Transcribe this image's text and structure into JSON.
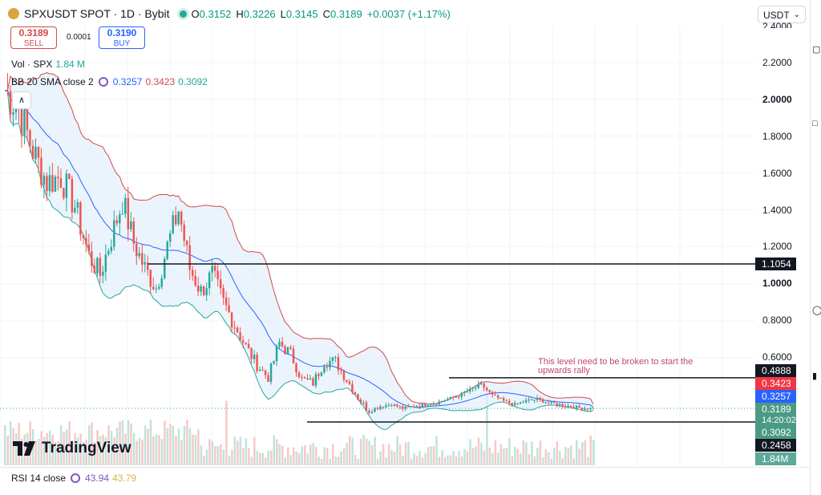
{
  "header": {
    "symbol": "SPXUSDT SPOT · 1D · Bybit",
    "o_label": "O",
    "o": "0.3152",
    "h_label": "H",
    "h": "0.3226",
    "l_label": "L",
    "l": "0.3145",
    "c_label": "C",
    "c": "0.3189",
    "change": "+0.0037 (+1.17%)"
  },
  "trade": {
    "sell_price": "0.3189",
    "sell_label": "SELL",
    "spread": "0.0001",
    "buy_price": "0.3190",
    "buy_label": "BUY"
  },
  "legends": {
    "vol_label": "Vol · SPX",
    "vol_value": "1.84 M",
    "bb_label": "BB 20 SMA close 2",
    "bb_basis": "0.3257",
    "bb_upper": "0.3423",
    "bb_lower": "0.3092",
    "rsi_label": "RSI 14 close",
    "rsi_value": "43.94",
    "rsi_ma": "43.79"
  },
  "currency": "USDT",
  "logo_text": "TradingView",
  "annotation": "This level need to be broken to start the upwards rally",
  "price_ticks": [
    "2.4000",
    "2.2000",
    "2.0000",
    "1.8000",
    "1.6000",
    "1.4000",
    "1.2000",
    "1.0000",
    "0.8000",
    "0.6000"
  ],
  "tags": {
    "level_1": "1.1054",
    "level_2": "0.4888",
    "bb_upper": "0.3423",
    "bb_basis": "0.3257",
    "last_price": "0.3189",
    "countdown": "14:20:02",
    "bb_lower": "0.3092",
    "level_3": "0.2458",
    "volume": "1.84M"
  },
  "colors": {
    "up": "#26a69a",
    "down": "#ef5350",
    "bb_upper": "#d14a4a",
    "bb_basis": "#2962ff",
    "bb_lower": "#26a69a",
    "band_fill": "#e3f0fb",
    "annotation": "#c2476b"
  },
  "chart_data": {
    "type": "candlestick",
    "title": "SPXUSDT SPOT · 1D · Bybit",
    "y_scale": "nonlinear price axis",
    "ylim": [
      0.18,
      2.45
    ],
    "horizontal_levels": [
      1.1054,
      0.4888,
      0.2458
    ],
    "approx_price_path": [
      [
        0,
        2.05
      ],
      [
        5,
        1.95
      ],
      [
        10,
        1.72
      ],
      [
        15,
        1.55
      ],
      [
        20,
        1.58
      ],
      [
        25,
        1.42
      ],
      [
        30,
        1.15
      ],
      [
        34,
        1.05
      ],
      [
        38,
        1.25
      ],
      [
        42,
        1.45
      ],
      [
        46,
        1.22
      ],
      [
        50,
        1.08
      ],
      [
        54,
        0.98
      ],
      [
        58,
        1.2
      ],
      [
        62,
        1.4
      ],
      [
        66,
        1.08
      ],
      [
        70,
        0.96
      ],
      [
        74,
        1.05
      ],
      [
        78,
        0.9
      ],
      [
        82,
        0.78
      ],
      [
        86,
        0.66
      ],
      [
        90,
        0.56
      ],
      [
        94,
        0.49
      ],
      [
        98,
        0.68
      ],
      [
        102,
        0.62
      ],
      [
        106,
        0.48
      ],
      [
        110,
        0.46
      ],
      [
        114,
        0.58
      ],
      [
        118,
        0.58
      ],
      [
        122,
        0.48
      ],
      [
        126,
        0.38
      ],
      [
        130,
        0.3
      ],
      [
        134,
        0.33
      ],
      [
        138,
        0.34
      ],
      [
        142,
        0.32
      ],
      [
        146,
        0.33
      ],
      [
        150,
        0.34
      ],
      [
        154,
        0.35
      ],
      [
        158,
        0.37
      ],
      [
        162,
        0.39
      ],
      [
        166,
        0.42
      ],
      [
        170,
        0.45
      ],
      [
        174,
        0.39
      ],
      [
        178,
        0.36
      ],
      [
        182,
        0.34
      ],
      [
        186,
        0.36
      ],
      [
        190,
        0.37
      ],
      [
        194,
        0.35
      ],
      [
        198,
        0.34
      ],
      [
        202,
        0.33
      ],
      [
        206,
        0.32
      ],
      [
        210,
        0.3189
      ]
    ],
    "bb_latest": {
      "basis": 0.3257,
      "upper": 0.3423,
      "lower": 0.3092
    },
    "rsi": {
      "length": 14,
      "value": 43.94,
      "ma": 43.79
    },
    "volume_latest": "1.84M"
  }
}
